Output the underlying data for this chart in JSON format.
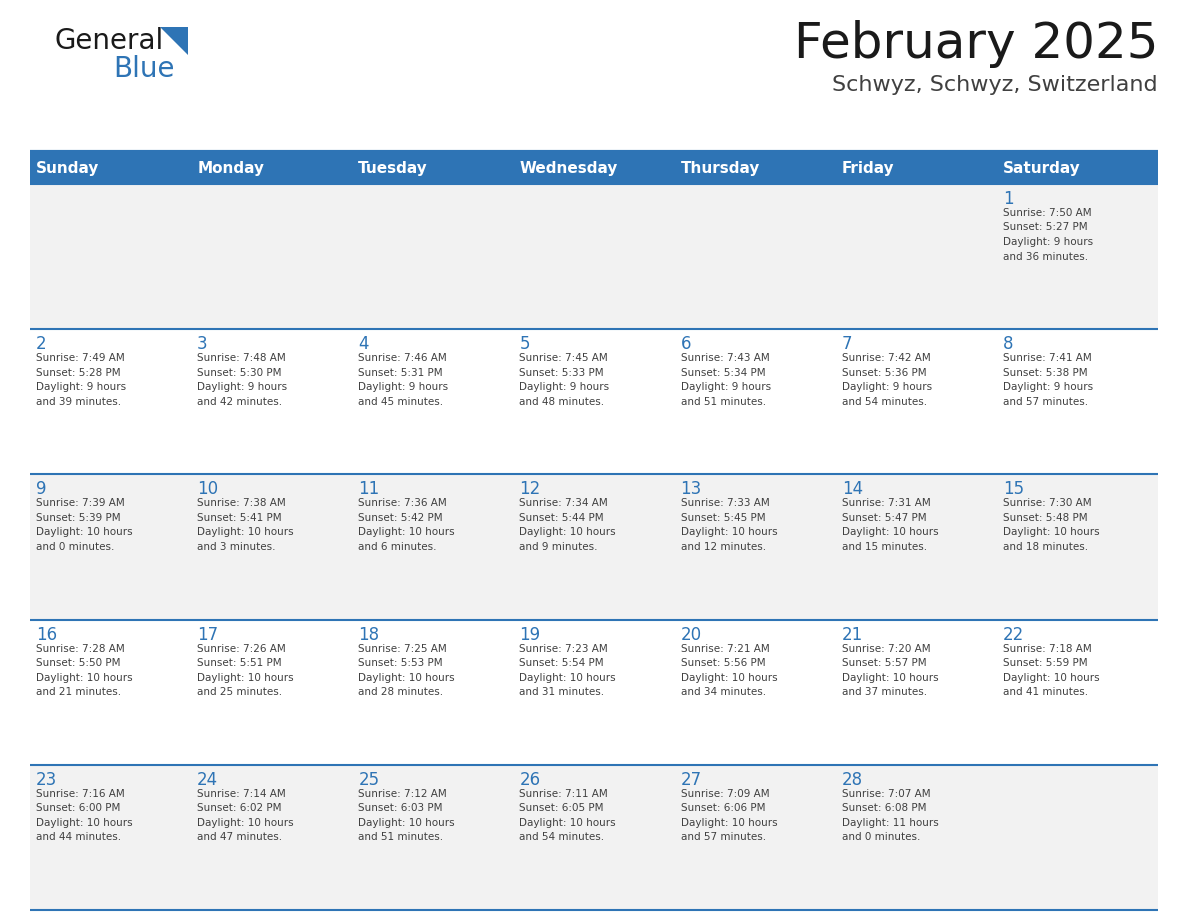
{
  "title": "February 2025",
  "subtitle": "Schwyz, Schwyz, Switzerland",
  "header_bg_color": "#2E74B5",
  "header_text_color": "#FFFFFF",
  "day_names": [
    "Sunday",
    "Monday",
    "Tuesday",
    "Wednesday",
    "Thursday",
    "Friday",
    "Saturday"
  ],
  "bg_color": "#FFFFFF",
  "cell_bg_light": "#F2F2F2",
  "cell_bg_white": "#FFFFFF",
  "border_color": "#2E74B5",
  "day_num_color": "#2E74B5",
  "cell_text_color": "#404040",
  "title_color": "#1A1A1A",
  "subtitle_color": "#404040",
  "logo_general_color": "#1A1A1A",
  "logo_blue_color": "#2E74B5",
  "logo_triangle_color": "#2E74B5",
  "weeks": [
    [
      {
        "day": null,
        "info": null
      },
      {
        "day": null,
        "info": null
      },
      {
        "day": null,
        "info": null
      },
      {
        "day": null,
        "info": null
      },
      {
        "day": null,
        "info": null
      },
      {
        "day": null,
        "info": null
      },
      {
        "day": 1,
        "info": "Sunrise: 7:50 AM\nSunset: 5:27 PM\nDaylight: 9 hours\nand 36 minutes."
      }
    ],
    [
      {
        "day": 2,
        "info": "Sunrise: 7:49 AM\nSunset: 5:28 PM\nDaylight: 9 hours\nand 39 minutes."
      },
      {
        "day": 3,
        "info": "Sunrise: 7:48 AM\nSunset: 5:30 PM\nDaylight: 9 hours\nand 42 minutes."
      },
      {
        "day": 4,
        "info": "Sunrise: 7:46 AM\nSunset: 5:31 PM\nDaylight: 9 hours\nand 45 minutes."
      },
      {
        "day": 5,
        "info": "Sunrise: 7:45 AM\nSunset: 5:33 PM\nDaylight: 9 hours\nand 48 minutes."
      },
      {
        "day": 6,
        "info": "Sunrise: 7:43 AM\nSunset: 5:34 PM\nDaylight: 9 hours\nand 51 minutes."
      },
      {
        "day": 7,
        "info": "Sunrise: 7:42 AM\nSunset: 5:36 PM\nDaylight: 9 hours\nand 54 minutes."
      },
      {
        "day": 8,
        "info": "Sunrise: 7:41 AM\nSunset: 5:38 PM\nDaylight: 9 hours\nand 57 minutes."
      }
    ],
    [
      {
        "day": 9,
        "info": "Sunrise: 7:39 AM\nSunset: 5:39 PM\nDaylight: 10 hours\nand 0 minutes."
      },
      {
        "day": 10,
        "info": "Sunrise: 7:38 AM\nSunset: 5:41 PM\nDaylight: 10 hours\nand 3 minutes."
      },
      {
        "day": 11,
        "info": "Sunrise: 7:36 AM\nSunset: 5:42 PM\nDaylight: 10 hours\nand 6 minutes."
      },
      {
        "day": 12,
        "info": "Sunrise: 7:34 AM\nSunset: 5:44 PM\nDaylight: 10 hours\nand 9 minutes."
      },
      {
        "day": 13,
        "info": "Sunrise: 7:33 AM\nSunset: 5:45 PM\nDaylight: 10 hours\nand 12 minutes."
      },
      {
        "day": 14,
        "info": "Sunrise: 7:31 AM\nSunset: 5:47 PM\nDaylight: 10 hours\nand 15 minutes."
      },
      {
        "day": 15,
        "info": "Sunrise: 7:30 AM\nSunset: 5:48 PM\nDaylight: 10 hours\nand 18 minutes."
      }
    ],
    [
      {
        "day": 16,
        "info": "Sunrise: 7:28 AM\nSunset: 5:50 PM\nDaylight: 10 hours\nand 21 minutes."
      },
      {
        "day": 17,
        "info": "Sunrise: 7:26 AM\nSunset: 5:51 PM\nDaylight: 10 hours\nand 25 minutes."
      },
      {
        "day": 18,
        "info": "Sunrise: 7:25 AM\nSunset: 5:53 PM\nDaylight: 10 hours\nand 28 minutes."
      },
      {
        "day": 19,
        "info": "Sunrise: 7:23 AM\nSunset: 5:54 PM\nDaylight: 10 hours\nand 31 minutes."
      },
      {
        "day": 20,
        "info": "Sunrise: 7:21 AM\nSunset: 5:56 PM\nDaylight: 10 hours\nand 34 minutes."
      },
      {
        "day": 21,
        "info": "Sunrise: 7:20 AM\nSunset: 5:57 PM\nDaylight: 10 hours\nand 37 minutes."
      },
      {
        "day": 22,
        "info": "Sunrise: 7:18 AM\nSunset: 5:59 PM\nDaylight: 10 hours\nand 41 minutes."
      }
    ],
    [
      {
        "day": 23,
        "info": "Sunrise: 7:16 AM\nSunset: 6:00 PM\nDaylight: 10 hours\nand 44 minutes."
      },
      {
        "day": 24,
        "info": "Sunrise: 7:14 AM\nSunset: 6:02 PM\nDaylight: 10 hours\nand 47 minutes."
      },
      {
        "day": 25,
        "info": "Sunrise: 7:12 AM\nSunset: 6:03 PM\nDaylight: 10 hours\nand 51 minutes."
      },
      {
        "day": 26,
        "info": "Sunrise: 7:11 AM\nSunset: 6:05 PM\nDaylight: 10 hours\nand 54 minutes."
      },
      {
        "day": 27,
        "info": "Sunrise: 7:09 AM\nSunset: 6:06 PM\nDaylight: 10 hours\nand 57 minutes."
      },
      {
        "day": 28,
        "info": "Sunrise: 7:07 AM\nSunset: 6:08 PM\nDaylight: 11 hours\nand 0 minutes."
      },
      {
        "day": null,
        "info": null
      }
    ]
  ]
}
